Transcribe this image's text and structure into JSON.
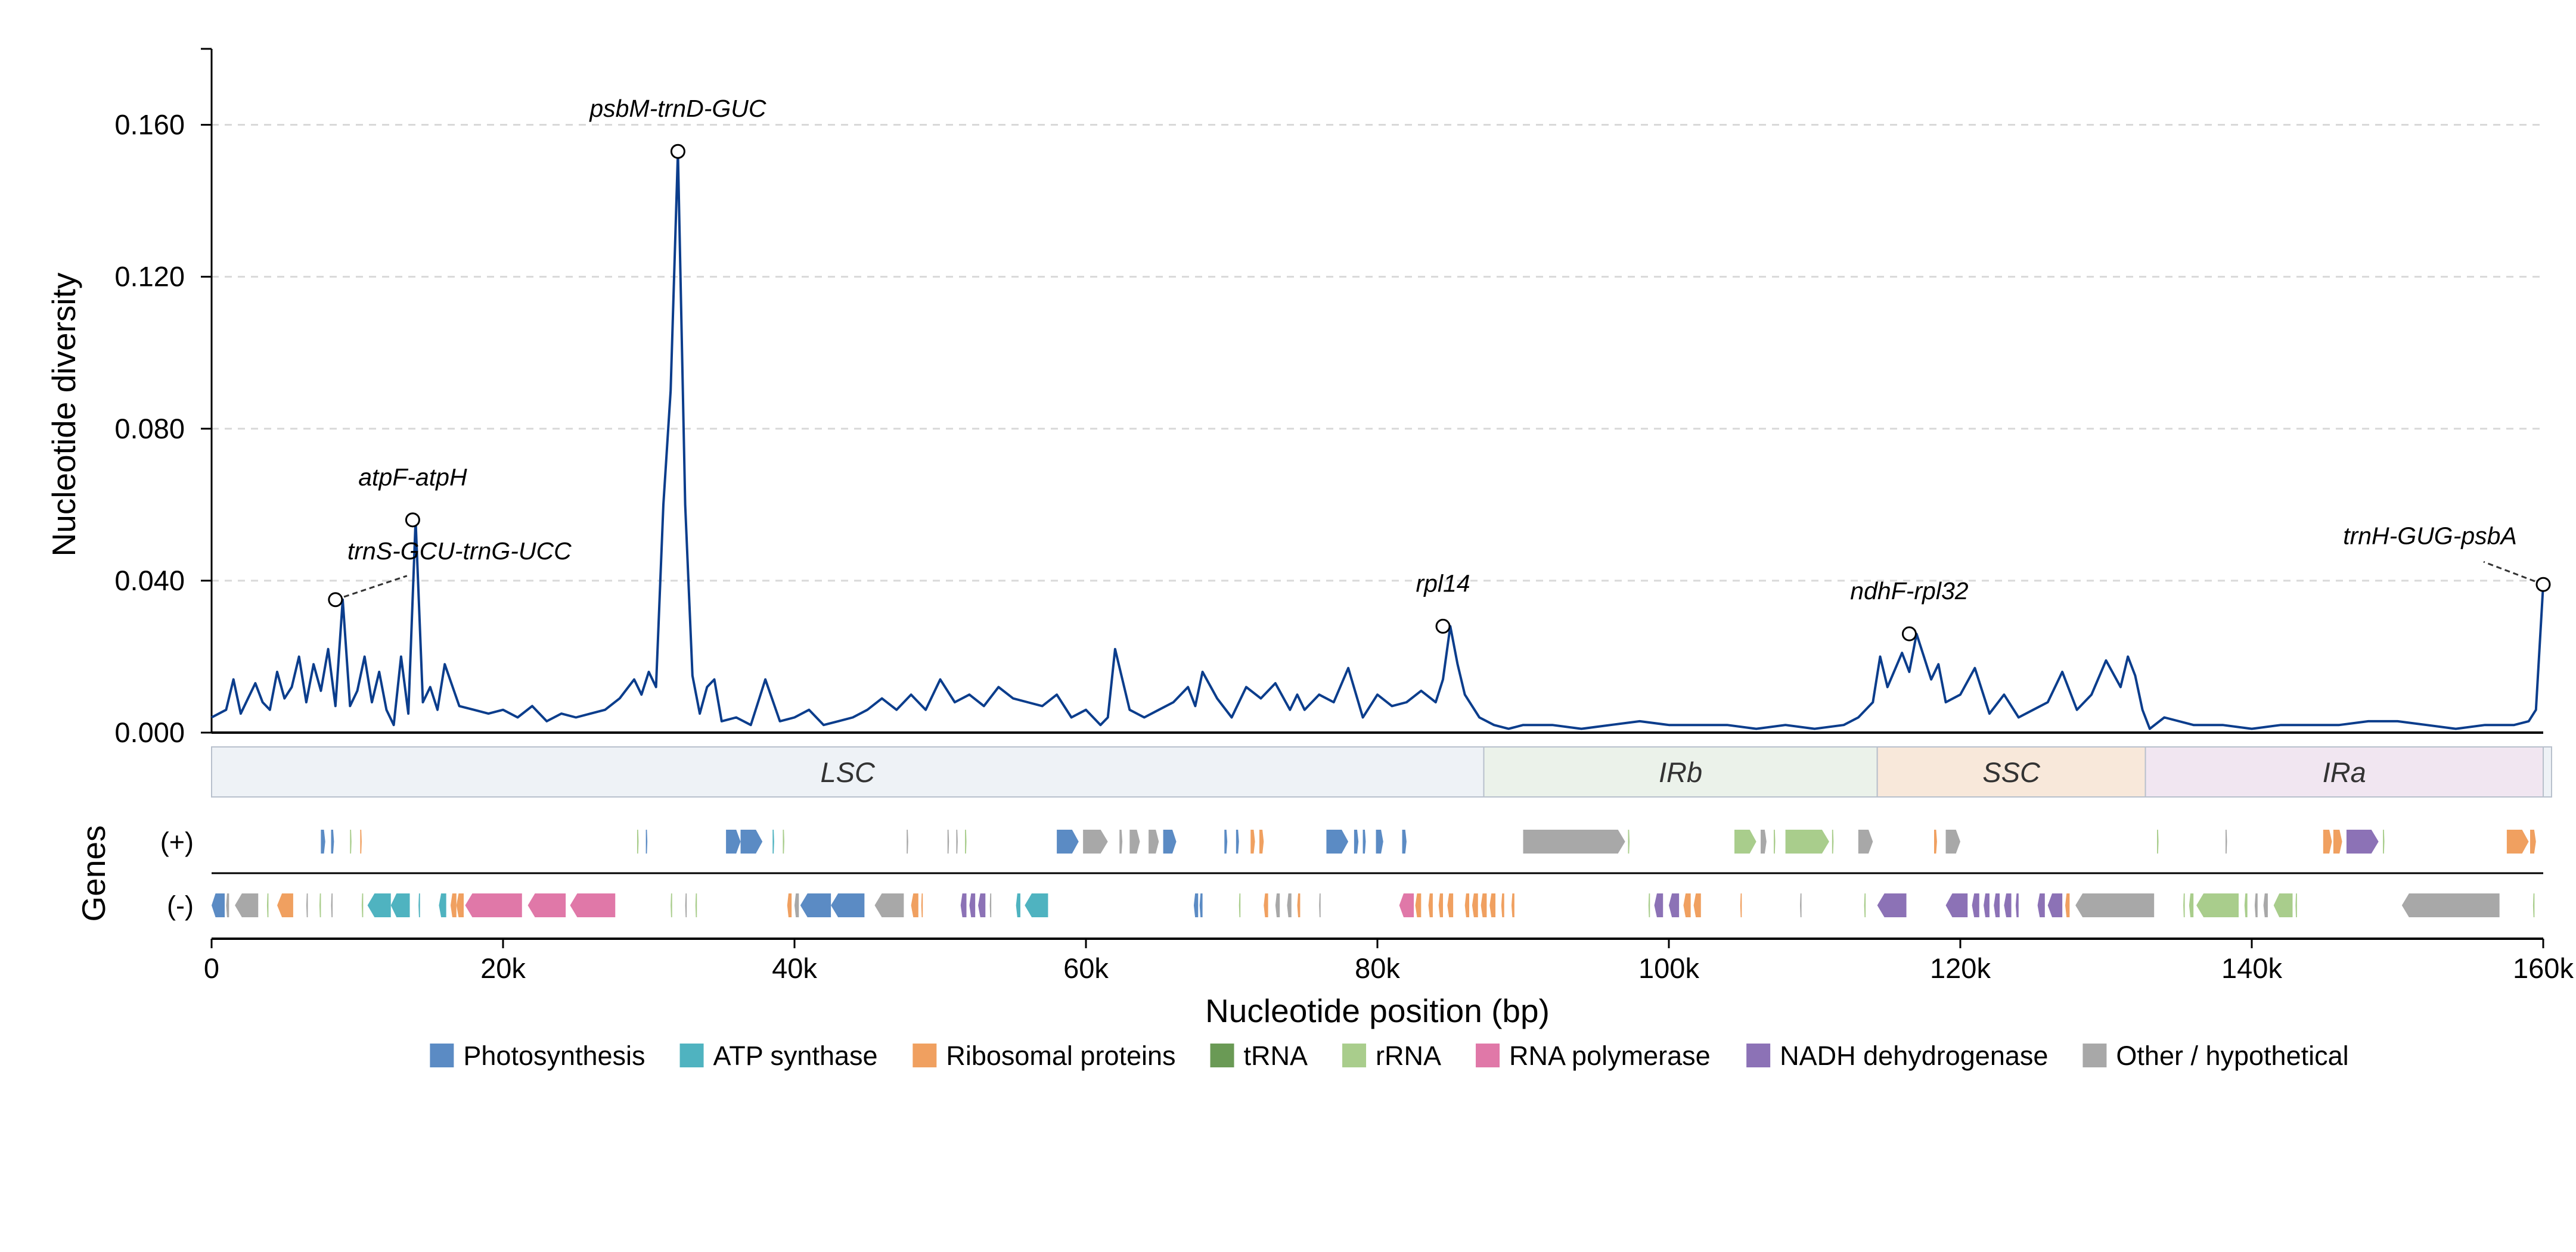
{
  "chart_data": {
    "type": "line",
    "ylabel": "Nucleotide diversity",
    "xlabel": "Nucleotide position (bp)",
    "xlim": [
      0,
      160000
    ],
    "ylim": [
      0,
      0.18
    ],
    "yticks": [
      0,
      0.04,
      0.08,
      0.12,
      0.16
    ],
    "ytick_labels": [
      "0.000",
      "0.040",
      "0.080",
      "0.120",
      "0.160"
    ],
    "xticks": [
      0,
      20000,
      40000,
      60000,
      80000,
      100000,
      120000,
      140000,
      160000
    ],
    "xtick_labels": [
      "0",
      "20k",
      "40k",
      "60k",
      "80k",
      "100k",
      "120k",
      "140k",
      "160k"
    ],
    "grid": "horizontal dashed",
    "line_color": "#0b3d8c",
    "series": [
      {
        "x": [
          0,
          1000,
          1500,
          2000,
          2500,
          3000,
          3500,
          4000,
          4500,
          5000,
          5500,
          6000,
          6500,
          7000,
          7500,
          8000,
          8500,
          9000,
          9500,
          10000,
          10500,
          11000,
          11500,
          12000,
          12500,
          13000,
          13500,
          14000,
          14500,
          15000,
          15500,
          16000,
          17000,
          18000,
          19000,
          20000,
          21000,
          22000,
          23000,
          24000,
          25000,
          26000,
          27000,
          28000,
          29000,
          29500,
          30000,
          30500,
          31000,
          31500,
          32000,
          32500,
          33000,
          33500,
          34000,
          34500,
          35000,
          36000,
          37000,
          38000,
          39000,
          40000,
          41000,
          42000,
          43000,
          44000,
          45000,
          46000,
          47000,
          48000,
          49000,
          50000,
          51000,
          52000,
          53000,
          54000,
          55000,
          56000,
          57000,
          58000,
          59000,
          60000,
          61000,
          61500,
          62000,
          63000,
          64000,
          65000,
          66000,
          67000,
          67500,
          68000,
          69000,
          70000,
          71000,
          72000,
          73000,
          74000,
          74500,
          75000,
          76000,
          77000,
          78000,
          79000,
          80000,
          81000,
          82000,
          83000,
          84000,
          84500,
          85000,
          85500,
          86000,
          87000,
          88000,
          89000,
          90000,
          92000,
          94000,
          96000,
          98000,
          100000,
          102000,
          104000,
          106000,
          108000,
          110000,
          112000,
          113000,
          114000,
          114500,
          115000,
          116000,
          116500,
          117000,
          117500,
          118000,
          118500,
          119000,
          120000,
          121000,
          122000,
          123000,
          124000,
          125000,
          126000,
          127000,
          128000,
          129000,
          130000,
          131000,
          131500,
          132000,
          132500,
          133000,
          134000,
          136000,
          138000,
          140000,
          142000,
          144000,
          146000,
          148000,
          150000,
          152000,
          154000,
          156000,
          158000,
          159000,
          159500,
          160000
        ],
        "y": [
          0.004,
          0.006,
          0.014,
          0.005,
          0.009,
          0.013,
          0.008,
          0.006,
          0.016,
          0.009,
          0.012,
          0.02,
          0.008,
          0.018,
          0.011,
          0.022,
          0.007,
          0.035,
          0.007,
          0.011,
          0.02,
          0.008,
          0.016,
          0.006,
          0.002,
          0.02,
          0.005,
          0.056,
          0.008,
          0.012,
          0.006,
          0.018,
          0.007,
          0.006,
          0.005,
          0.006,
          0.004,
          0.007,
          0.003,
          0.005,
          0.004,
          0.005,
          0.006,
          0.009,
          0.014,
          0.01,
          0.016,
          0.012,
          0.06,
          0.09,
          0.153,
          0.06,
          0.015,
          0.005,
          0.012,
          0.014,
          0.003,
          0.004,
          0.002,
          0.014,
          0.003,
          0.004,
          0.006,
          0.002,
          0.003,
          0.004,
          0.006,
          0.009,
          0.006,
          0.01,
          0.006,
          0.014,
          0.008,
          0.01,
          0.007,
          0.012,
          0.009,
          0.008,
          0.007,
          0.01,
          0.004,
          0.006,
          0.002,
          0.004,
          0.022,
          0.006,
          0.004,
          0.006,
          0.008,
          0.012,
          0.007,
          0.016,
          0.009,
          0.004,
          0.012,
          0.009,
          0.013,
          0.006,
          0.01,
          0.006,
          0.01,
          0.008,
          0.017,
          0.004,
          0.01,
          0.007,
          0.008,
          0.011,
          0.008,
          0.014,
          0.028,
          0.018,
          0.01,
          0.004,
          0.002,
          0.001,
          0.002,
          0.002,
          0.001,
          0.002,
          0.003,
          0.002,
          0.002,
          0.002,
          0.001,
          0.002,
          0.001,
          0.002,
          0.004,
          0.008,
          0.02,
          0.012,
          0.021,
          0.016,
          0.026,
          0.02,
          0.014,
          0.018,
          0.008,
          0.01,
          0.017,
          0.005,
          0.01,
          0.004,
          0.006,
          0.008,
          0.016,
          0.006,
          0.01,
          0.019,
          0.012,
          0.02,
          0.015,
          0.006,
          0.001,
          0.004,
          0.002,
          0.002,
          0.001,
          0.002,
          0.002,
          0.002,
          0.003,
          0.003,
          0.002,
          0.001,
          0.002,
          0.002,
          0.003,
          0.006,
          0.039
        ]
      }
    ],
    "peaks": [
      {
        "label": "psbM-trnD-GUC",
        "x": 32000,
        "y": 0.153
      },
      {
        "label": "atpF-atpH",
        "x": 13800,
        "y": 0.056
      },
      {
        "label": "trnS-GCU-trnG-UCC",
        "x": 8500,
        "y": 0.035
      },
      {
        "label": "rpl14",
        "x": 84500,
        "y": 0.028
      },
      {
        "label": "ndhF-rpl32",
        "x": 116500,
        "y": 0.026
      },
      {
        "label": "trnH-GUG-psbA",
        "x": 160000,
        "y": 0.039
      }
    ],
    "regions": [
      {
        "label": "LSC",
        "start": 0,
        "end": 87300,
        "color": "#eef2f6"
      },
      {
        "label": "IRb",
        "start": 87300,
        "end": 114300,
        "color": "#ebf2ea"
      },
      {
        "label": "SSC",
        "start": 114300,
        "end": 132700,
        "color": "#f8e8da"
      },
      {
        "label": "IRa",
        "start": 132700,
        "end": 160000,
        "color": "#f1e6f1"
      }
    ],
    "gene_track": {
      "title": "Genes",
      "plus_label": "(+)",
      "minus_label": "(-)",
      "plus": [
        {
          "s": 7500,
          "e": 7800,
          "c": "photo"
        },
        {
          "s": 8200,
          "e": 8400,
          "c": "photo"
        },
        {
          "s": 9500,
          "e": 9600,
          "c": "rrna"
        },
        {
          "s": 10200,
          "e": 10300,
          "c": "ribo"
        },
        {
          "s": 29200,
          "e": 29300,
          "c": "rrna"
        },
        {
          "s": 29800,
          "e": 29900,
          "c": "photo"
        },
        {
          "s": 35300,
          "e": 36300,
          "c": "photo"
        },
        {
          "s": 36300,
          "e": 37800,
          "c": "photo"
        },
        {
          "s": 38500,
          "e": 38600,
          "c": "atp"
        },
        {
          "s": 39200,
          "e": 39300,
          "c": "rrna"
        },
        {
          "s": 47700,
          "e": 47800,
          "c": "other"
        },
        {
          "s": 50500,
          "e": 50600,
          "c": "other"
        },
        {
          "s": 51100,
          "e": 51200,
          "c": "other"
        },
        {
          "s": 51700,
          "e": 51800,
          "c": "rrna"
        },
        {
          "s": 58000,
          "e": 59500,
          "c": "photo"
        },
        {
          "s": 59800,
          "e": 61500,
          "c": "other"
        },
        {
          "s": 62300,
          "e": 62500,
          "c": "other"
        },
        {
          "s": 63000,
          "e": 63700,
          "c": "other"
        },
        {
          "s": 64300,
          "e": 65000,
          "c": "other"
        },
        {
          "s": 65300,
          "e": 66200,
          "c": "photo"
        },
        {
          "s": 69500,
          "e": 69700,
          "c": "photo"
        },
        {
          "s": 70300,
          "e": 70500,
          "c": "photo"
        },
        {
          "s": 71300,
          "e": 71600,
          "c": "ribo"
        },
        {
          "s": 71900,
          "e": 72200,
          "c": "ribo"
        },
        {
          "s": 76500,
          "e": 78000,
          "c": "photo"
        },
        {
          "s": 78400,
          "e": 78700,
          "c": "photo"
        },
        {
          "s": 79000,
          "e": 79200,
          "c": "photo"
        },
        {
          "s": 79900,
          "e": 80400,
          "c": "photo"
        },
        {
          "s": 81700,
          "e": 82000,
          "c": "photo"
        },
        {
          "s": 90000,
          "e": 97000,
          "c": "other"
        },
        {
          "s": 97200,
          "e": 97300,
          "c": "rrna"
        },
        {
          "s": 104500,
          "e": 106000,
          "c": "rrna"
        },
        {
          "s": 106300,
          "e": 106700,
          "c": "other"
        },
        {
          "s": 107200,
          "e": 107300,
          "c": "rrna"
        },
        {
          "s": 108000,
          "e": 111000,
          "c": "rrna"
        },
        {
          "s": 111200,
          "e": 111300,
          "c": "rrna"
        },
        {
          "s": 113000,
          "e": 114000,
          "c": "other"
        },
        {
          "s": 118200,
          "e": 118400,
          "c": "ribo"
        },
        {
          "s": 119000,
          "e": 120000,
          "c": "other"
        },
        {
          "s": 133500,
          "e": 133600,
          "c": "rrna"
        },
        {
          "s": 138200,
          "e": 138300,
          "c": "other"
        },
        {
          "s": 144900,
          "e": 145500,
          "c": "ribo"
        },
        {
          "s": 145600,
          "e": 146200,
          "c": "ribo"
        },
        {
          "s": 146500,
          "e": 148700,
          "c": "nadh"
        },
        {
          "s": 149000,
          "e": 149100,
          "c": "rrna"
        },
        {
          "s": 157500,
          "e": 159000,
          "c": "ribo"
        },
        {
          "s": 159100,
          "e": 159500,
          "c": "ribo"
        }
      ],
      "minus": [
        {
          "s": 0,
          "e": 900,
          "c": "photo"
        },
        {
          "s": 1000,
          "e": 1200,
          "c": "other"
        },
        {
          "s": 1600,
          "e": 3200,
          "c": "other"
        },
        {
          "s": 3800,
          "e": 3900,
          "c": "rrna"
        },
        {
          "s": 4500,
          "e": 5600,
          "c": "ribo"
        },
        {
          "s": 6500,
          "e": 6600,
          "c": "other"
        },
        {
          "s": 7400,
          "e": 7500,
          "c": "rrna"
        },
        {
          "s": 8200,
          "e": 8300,
          "c": "other"
        },
        {
          "s": 10300,
          "e": 10400,
          "c": "rrna"
        },
        {
          "s": 10700,
          "e": 12300,
          "c": "atp"
        },
        {
          "s": 12300,
          "e": 13600,
          "c": "atp"
        },
        {
          "s": 14200,
          "e": 14300,
          "c": "atp"
        },
        {
          "s": 15600,
          "e": 16100,
          "c": "atp"
        },
        {
          "s": 16400,
          "e": 16800,
          "c": "ribo"
        },
        {
          "s": 16800,
          "e": 17300,
          "c": "ribo"
        },
        {
          "s": 17400,
          "e": 21300,
          "c": "rnap"
        },
        {
          "s": 21700,
          "e": 24300,
          "c": "rnap"
        },
        {
          "s": 24600,
          "e": 27700,
          "c": "rnap"
        },
        {
          "s": 31500,
          "e": 31600,
          "c": "rrna"
        },
        {
          "s": 32500,
          "e": 32600,
          "c": "other"
        },
        {
          "s": 33200,
          "e": 33300,
          "c": "rrna"
        },
        {
          "s": 39500,
          "e": 39800,
          "c": "ribo"
        },
        {
          "s": 40000,
          "e": 40300,
          "c": "other"
        },
        {
          "s": 40400,
          "e": 42500,
          "c": "photo"
        },
        {
          "s": 42500,
          "e": 44800,
          "c": "photo"
        },
        {
          "s": 45500,
          "e": 47500,
          "c": "other"
        },
        {
          "s": 48000,
          "e": 48500,
          "c": "ribo"
        },
        {
          "s": 48700,
          "e": 48800,
          "c": "ribo"
        },
        {
          "s": 51400,
          "e": 51800,
          "c": "nadh"
        },
        {
          "s": 52000,
          "e": 52400,
          "c": "nadh"
        },
        {
          "s": 52600,
          "e": 53100,
          "c": "nadh"
        },
        {
          "s": 53400,
          "e": 53500,
          "c": "other"
        },
        {
          "s": 55200,
          "e": 55500,
          "c": "atp"
        },
        {
          "s": 55800,
          "e": 57400,
          "c": "atp"
        },
        {
          "s": 67400,
          "e": 67700,
          "c": "photo"
        },
        {
          "s": 67800,
          "e": 68000,
          "c": "photo"
        },
        {
          "s": 70500,
          "e": 70600,
          "c": "rrna"
        },
        {
          "s": 72200,
          "e": 72500,
          "c": "ribo"
        },
        {
          "s": 73000,
          "e": 73300,
          "c": "other"
        },
        {
          "s": 73800,
          "e": 74100,
          "c": "other"
        },
        {
          "s": 74500,
          "e": 74700,
          "c": "ribo"
        },
        {
          "s": 76000,
          "e": 76100,
          "c": "other"
        },
        {
          "s": 81500,
          "e": 82500,
          "c": "rnap"
        },
        {
          "s": 82600,
          "e": 83000,
          "c": "ribo"
        },
        {
          "s": 83500,
          "e": 83800,
          "c": "ribo"
        },
        {
          "s": 84200,
          "e": 84500,
          "c": "ribo"
        },
        {
          "s": 84800,
          "e": 85200,
          "c": "ribo"
        },
        {
          "s": 86000,
          "e": 86300,
          "c": "ribo"
        },
        {
          "s": 86500,
          "e": 86900,
          "c": "ribo"
        },
        {
          "s": 87100,
          "e": 87500,
          "c": "ribo"
        },
        {
          "s": 87700,
          "e": 88100,
          "c": "ribo"
        },
        {
          "s": 88500,
          "e": 88700,
          "c": "ribo"
        },
        {
          "s": 89200,
          "e": 89400,
          "c": "ribo"
        },
        {
          "s": 98600,
          "e": 98700,
          "c": "rrna"
        },
        {
          "s": 99000,
          "e": 99600,
          "c": "nadh"
        },
        {
          "s": 100000,
          "e": 100700,
          "c": "nadh"
        },
        {
          "s": 101000,
          "e": 101500,
          "c": "ribo"
        },
        {
          "s": 101700,
          "e": 102200,
          "c": "ribo"
        },
        {
          "s": 104900,
          "e": 105000,
          "c": "ribo"
        },
        {
          "s": 109000,
          "e": 109100,
          "c": "other"
        },
        {
          "s": 113400,
          "e": 113500,
          "c": "rrna"
        },
        {
          "s": 114300,
          "e": 116300,
          "c": "nadh"
        },
        {
          "s": 119000,
          "e": 120500,
          "c": "nadh"
        },
        {
          "s": 120800,
          "e": 121300,
          "c": "nadh"
        },
        {
          "s": 121600,
          "e": 122000,
          "c": "nadh"
        },
        {
          "s": 122300,
          "e": 122700,
          "c": "nadh"
        },
        {
          "s": 123000,
          "e": 123500,
          "c": "nadh"
        },
        {
          "s": 123800,
          "e": 124000,
          "c": "nadh"
        },
        {
          "s": 125300,
          "e": 125800,
          "c": "nadh"
        },
        {
          "s": 126000,
          "e": 127000,
          "c": "nadh"
        },
        {
          "s": 127200,
          "e": 127500,
          "c": "ribo"
        },
        {
          "s": 127900,
          "e": 133300,
          "c": "other"
        },
        {
          "s": 135300,
          "e": 135400,
          "c": "rrna"
        },
        {
          "s": 135700,
          "e": 136000,
          "c": "rrna"
        },
        {
          "s": 136200,
          "e": 139100,
          "c": "rrna"
        },
        {
          "s": 139500,
          "e": 139700,
          "c": "rrna"
        },
        {
          "s": 140200,
          "e": 140400,
          "c": "other"
        },
        {
          "s": 140800,
          "e": 141100,
          "c": "other"
        },
        {
          "s": 141500,
          "e": 142800,
          "c": "rrna"
        },
        {
          "s": 143000,
          "e": 143100,
          "c": "rrna"
        },
        {
          "s": 150300,
          "e": 157000,
          "c": "other"
        },
        {
          "s": 159300,
          "e": 159400,
          "c": "rrna"
        }
      ]
    },
    "legend": [
      {
        "key": "photo",
        "label": "Photosynthesis",
        "color": "#5b8bc4"
      },
      {
        "key": "atp",
        "label": "ATP synthase",
        "color": "#4fb3c0"
      },
      {
        "key": "ribo",
        "label": "Ribosomal proteins",
        "color": "#f0a060"
      },
      {
        "key": "trna",
        "label": "tRNA",
        "color": "#6a9a55"
      },
      {
        "key": "rrna",
        "label": "rRNA",
        "color": "#a9cd8c"
      },
      {
        "key": "rnap",
        "label": "RNA polymerase",
        "color": "#e078a8"
      },
      {
        "key": "nadh",
        "label": "NADH dehydrogenase",
        "color": "#8c72b6"
      },
      {
        "key": "other",
        "label": "Other / hypothetical",
        "color": "#a8a8a8"
      }
    ]
  }
}
